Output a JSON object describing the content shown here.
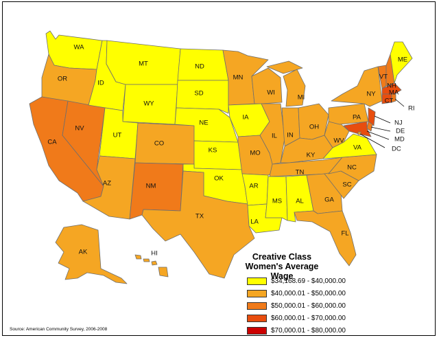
{
  "legend": {
    "title_line1": "Creative Class",
    "title_line2": "Women's Average Wage",
    "classes": [
      {
        "label": "$34,168.69 - $40,000.00",
        "color": "#ffff00"
      },
      {
        "label": "$40,000.01 - $50,000.00",
        "color": "#f5a623"
      },
      {
        "label": "$50,000.01 - $60,000.00",
        "color": "#f07a1a"
      },
      {
        "label": "$60,000.01 - $70,000.00",
        "color": "#e84d0e"
      },
      {
        "label": "$70,000.01 - $80,000.00",
        "color": "#cc0000"
      }
    ]
  },
  "source": "Source: American Community Survey, 2006-2008",
  "states": {
    "WA": {
      "label": "WA",
      "class": 0
    },
    "OR": {
      "label": "OR",
      "class": 1
    },
    "CA": {
      "label": "CA",
      "class": 2
    },
    "NV": {
      "label": "NV",
      "class": 2
    },
    "ID": {
      "label": "ID",
      "class": 0
    },
    "MT": {
      "label": "MT",
      "class": 0
    },
    "WY": {
      "label": "WY",
      "class": 0
    },
    "UT": {
      "label": "UT",
      "class": 0
    },
    "AZ": {
      "label": "AZ",
      "class": 1
    },
    "CO": {
      "label": "CO",
      "class": 1
    },
    "NM": {
      "label": "NM",
      "class": 2
    },
    "ND": {
      "label": "ND",
      "class": 0
    },
    "SD": {
      "label": "SD",
      "class": 0
    },
    "NE": {
      "label": "NE",
      "class": 0
    },
    "KS": {
      "label": "KS",
      "class": 0
    },
    "OK": {
      "label": "OK",
      "class": 0
    },
    "TX": {
      "label": "TX",
      "class": 1
    },
    "MN": {
      "label": "MN",
      "class": 1
    },
    "IA": {
      "label": "IA",
      "class": 0
    },
    "MO": {
      "label": "MO",
      "class": 1
    },
    "AR": {
      "label": "AR",
      "class": 0
    },
    "LA": {
      "label": "LA",
      "class": 0
    },
    "WI": {
      "label": "WI",
      "class": 1
    },
    "IL": {
      "label": "IL",
      "class": 1
    },
    "MI": {
      "label": "MI",
      "class": 1
    },
    "IN": {
      "label": "IN",
      "class": 1
    },
    "OH": {
      "label": "OH",
      "class": 1
    },
    "KY": {
      "label": "KY",
      "class": 1
    },
    "TN": {
      "label": "TN",
      "class": 1
    },
    "MS": {
      "label": "MS",
      "class": 0
    },
    "AL": {
      "label": "AL",
      "class": 0
    },
    "GA": {
      "label": "GA",
      "class": 1
    },
    "FL": {
      "label": "FL",
      "class": 1
    },
    "SC": {
      "label": "SC",
      "class": 1
    },
    "NC": {
      "label": "NC",
      "class": 1
    },
    "VA": {
      "label": "VA",
      "class": 0
    },
    "WV": {
      "label": "WV",
      "class": 1
    },
    "PA": {
      "label": "PA",
      "class": 1
    },
    "NY": {
      "label": "NY",
      "class": 1
    },
    "VT": {
      "label": "VT",
      "class": 2
    },
    "NH": {
      "label": "NH",
      "class": 2
    },
    "ME": {
      "label": "ME",
      "class": 0
    },
    "MA": {
      "label": "MA",
      "class": 3
    },
    "RI": {
      "label": "RI",
      "class": 2
    },
    "CT": {
      "label": "CT",
      "class": 3
    },
    "NJ": {
      "label": "NJ",
      "class": 3
    },
    "DE": {
      "label": "DE",
      "class": 2
    },
    "MD": {
      "label": "MD",
      "class": 3
    },
    "DC": {
      "label": "DC",
      "class": 1
    },
    "AK": {
      "label": "AK",
      "class": 1
    },
    "HI": {
      "label": "HI",
      "class": 1
    }
  }
}
